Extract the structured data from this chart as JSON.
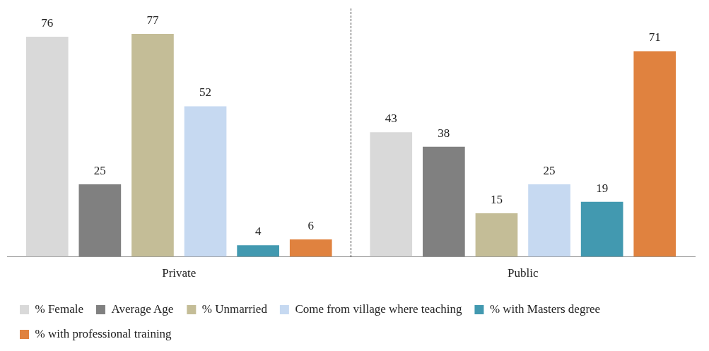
{
  "chart_data": {
    "type": "bar",
    "categories": [
      "Private",
      "Public"
    ],
    "series": [
      {
        "name": "% Female",
        "color": "#d9d9d9",
        "values": [
          76,
          43
        ]
      },
      {
        "name": "Average Age",
        "color": "#808080",
        "values": [
          25,
          38
        ]
      },
      {
        "name": "% Unmarried",
        "color": "#c4bd97",
        "values": [
          77,
          15
        ]
      },
      {
        "name": "Come from village where teaching",
        "color": "#c6d9f1",
        "values": [
          52,
          25
        ]
      },
      {
        "name": "% with Masters degree",
        "color": "#4299b0",
        "values": [
          4,
          19
        ]
      },
      {
        "name": "% with professional training",
        "color": "#e0823f",
        "values": [
          6,
          71
        ]
      }
    ],
    "data_labels": true,
    "grid": false,
    "legend": "bottom",
    "tick_labels": "x"
  }
}
